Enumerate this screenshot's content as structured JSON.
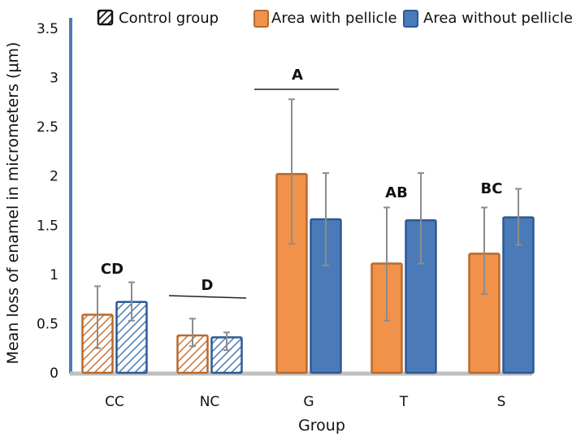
{
  "chart_data": {
    "type": "bar",
    "title": "",
    "xlabel": "Group",
    "ylabel": "Mean loss of enamel in micrometers (μm)",
    "ylim": [
      0,
      3.5
    ],
    "yticks": [
      "0",
      "0.5",
      "1",
      "1.5",
      "2",
      "2.5",
      "3",
      "3.5"
    ],
    "ytick_values": [
      0,
      0.5,
      1,
      1.5,
      2,
      2.5,
      3,
      3.5
    ],
    "grid": false,
    "legend_position": "top",
    "categories": [
      "CC",
      "NC",
      "G",
      "T",
      "S"
    ],
    "control_categories": [
      "CC",
      "NC"
    ],
    "legend": [
      {
        "label": "Control group",
        "style": "hatched"
      },
      {
        "label": "Area with pellicle",
        "color": "#f0924a"
      },
      {
        "label": "Area without pellicle",
        "color": "#4a7bb8"
      }
    ],
    "series": [
      {
        "name": "Area with pellicle",
        "color": "#f0924a",
        "edge_color": "#b86a2c",
        "values": [
          0.59,
          0.38,
          2.02,
          1.11,
          1.21
        ],
        "error_low": [
          0.25,
          0.27,
          1.31,
          0.53,
          0.8
        ],
        "error_high": [
          0.88,
          0.55,
          2.78,
          1.68,
          1.68
        ]
      },
      {
        "name": "Area without pellicle",
        "color": "#4a7bb8",
        "edge_color": "#2d5a94",
        "values": [
          0.72,
          0.36,
          1.56,
          1.55,
          1.58
        ],
        "error_low": [
          0.53,
          0.23,
          1.09,
          1.11,
          1.3
        ],
        "error_high": [
          0.92,
          0.41,
          2.03,
          2.03,
          1.87
        ]
      }
    ],
    "annotations": [
      {
        "text": "CD",
        "category": "CC",
        "line": false
      },
      {
        "text": "D",
        "category": "NC",
        "line": true
      },
      {
        "text": "A",
        "category": "G",
        "line": true
      },
      {
        "text": "AB",
        "category": "T",
        "line": false
      },
      {
        "text": "BC",
        "category": "S",
        "line": false
      }
    ]
  }
}
